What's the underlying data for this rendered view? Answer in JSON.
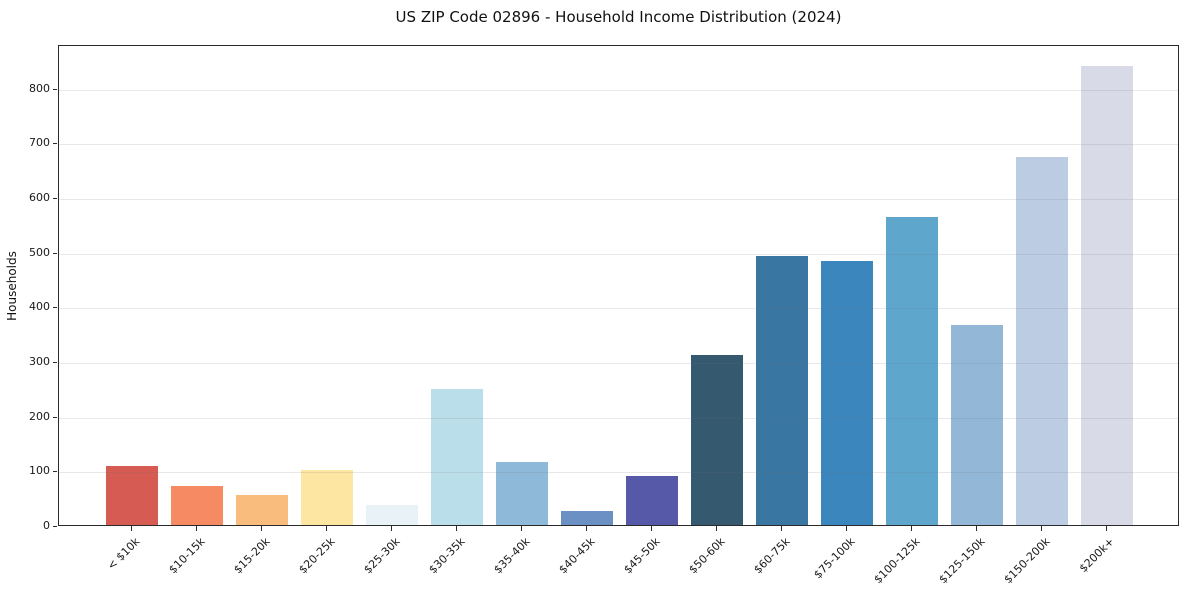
{
  "figure": {
    "background_color": "#ffffff",
    "frame_color": "#2a2a2a",
    "gridline_color": "#e9e9e9"
  },
  "chart_data": {
    "type": "bar",
    "title": "US ZIP Code 02896 - Household Income Distribution (2024)",
    "xlabel": "",
    "ylabel": "Households",
    "categories": [
      "< $10k",
      "$10-15k",
      "$15-20k",
      "$20-25k",
      "$25-30k",
      "$30-35k",
      "$35-40k",
      "$40-45k",
      "$45-50k",
      "$50-60k",
      "$60-75k",
      "$75-100k",
      "$100-125k",
      "$125-150k",
      "$150-200k",
      "$200k+"
    ],
    "values": [
      108,
      72,
      55,
      100,
      36,
      249,
      115,
      26,
      89,
      311,
      492,
      483,
      563,
      366,
      673,
      840
    ],
    "bar_colors": [
      "#d65b52",
      "#f58a63",
      "#f9bc7c",
      "#fde5a2",
      "#e8f2f7",
      "#bbdeeb",
      "#8eb9d9",
      "#6b90c3",
      "#5659a7",
      "#355a70",
      "#3a76a2",
      "#3a86bd",
      "#5fa6cd",
      "#93b8d7",
      "#bccde3",
      "#d8dae7"
    ],
    "ylim": [
      0,
      880
    ],
    "yticks": [
      0,
      100,
      200,
      300,
      400,
      500,
      600,
      700,
      800
    ],
    "grid": "horizontal",
    "legend": "none",
    "x_tick_label_rotation_deg": 45
  }
}
